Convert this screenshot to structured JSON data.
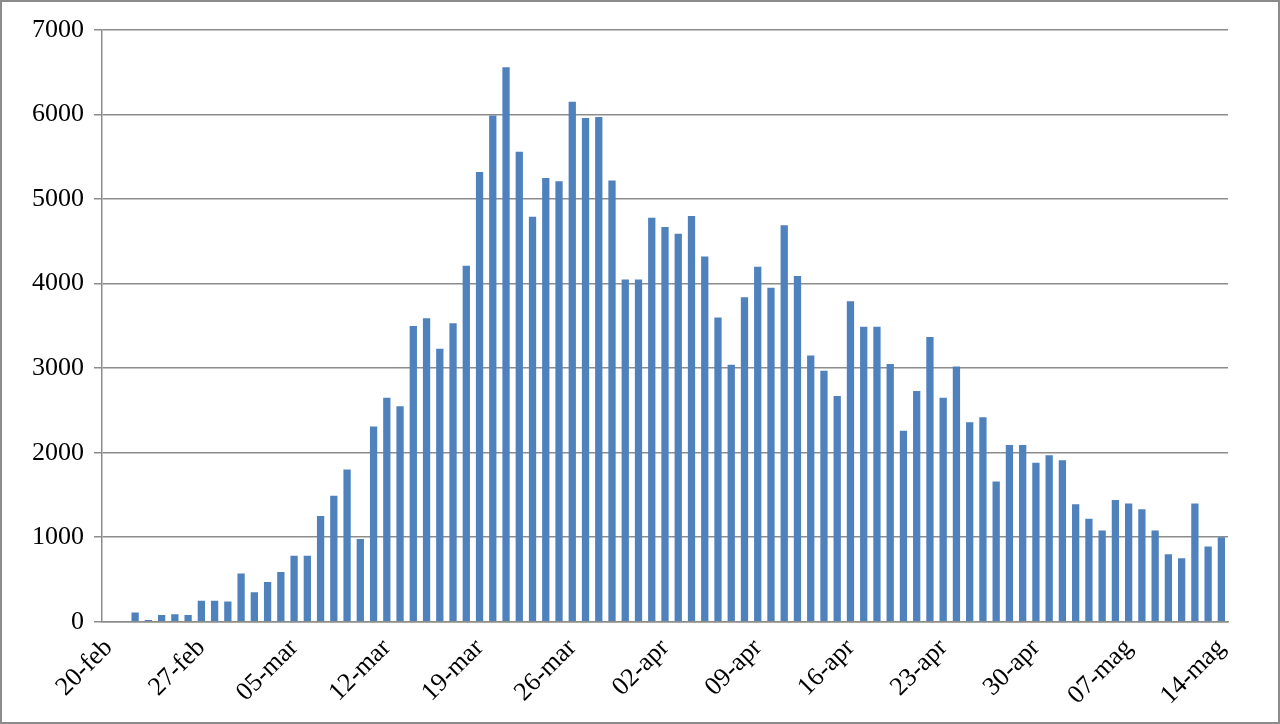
{
  "chart_data": {
    "type": "bar",
    "categories": [
      "20-feb",
      null,
      null,
      null,
      null,
      null,
      null,
      "27-feb",
      null,
      null,
      null,
      null,
      null,
      null,
      "05-mar",
      null,
      null,
      null,
      null,
      null,
      null,
      "12-mar",
      null,
      null,
      null,
      null,
      null,
      null,
      "19-mar",
      null,
      null,
      null,
      null,
      null,
      null,
      "26-mar",
      null,
      null,
      null,
      null,
      null,
      null,
      "02-apr",
      null,
      null,
      null,
      null,
      null,
      null,
      "09-apr",
      null,
      null,
      null,
      null,
      null,
      null,
      "16-apr",
      null,
      null,
      null,
      null,
      null,
      null,
      "23-apr",
      null,
      null,
      null,
      null,
      null,
      null,
      "30-apr",
      null,
      null,
      null,
      null,
      null,
      null,
      "07-mag",
      null,
      null,
      null,
      null,
      null,
      null,
      "14-mag"
    ],
    "values": [
      null,
      null,
      110,
      20,
      80,
      90,
      80,
      250,
      250,
      240,
      570,
      350,
      470,
      590,
      780,
      780,
      1250,
      1490,
      1800,
      980,
      2310,
      2650,
      2550,
      3500,
      3590,
      3230,
      3530,
      4210,
      5320,
      5990,
      6560,
      5560,
      4790,
      5250,
      5210,
      6150,
      5960,
      5970,
      5220,
      4050,
      4050,
      4780,
      4670,
      4590,
      4800,
      4320,
      3600,
      3040,
      3840,
      4200,
      3950,
      4690,
      4090,
      3150,
      2970,
      2670,
      3790,
      3490,
      3490,
      3050,
      2260,
      2730,
      3370,
      2650,
      3020,
      2360,
      2420,
      1660,
      2090,
      2090,
      1880,
      1970,
      1910,
      1390,
      1220,
      1080,
      1440,
      1400,
      1330,
      1080,
      800,
      750,
      1400,
      890,
      1000
    ],
    "color": "#4f81bd",
    "ylim": [
      0,
      7000
    ],
    "yticks": [
      0,
      1000,
      2000,
      3000,
      4000,
      5000,
      6000,
      7000
    ],
    "grid": true
  }
}
